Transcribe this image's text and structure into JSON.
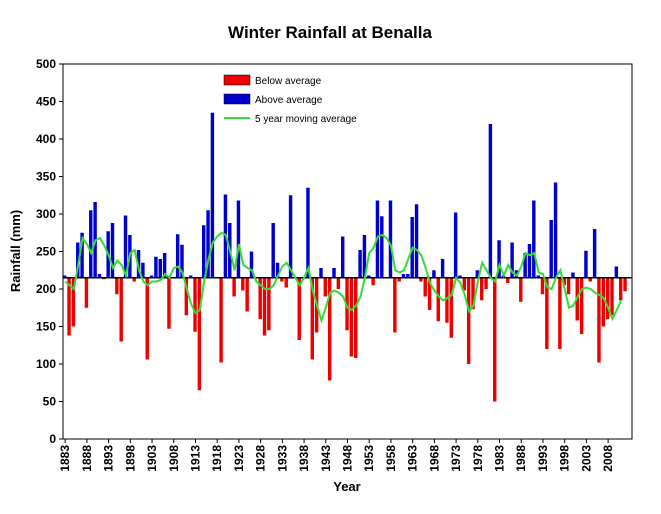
{
  "chart_data": {
    "type": "bar",
    "title": "Winter Rainfall at Benalla",
    "xlabel": "Year",
    "ylabel": "Rainfall (mm)",
    "baseline": 215,
    "ylim": [
      0,
      500
    ],
    "yticks": [
      0,
      50,
      100,
      150,
      200,
      250,
      300,
      350,
      400,
      450,
      500
    ],
    "xticks": [
      1883,
      1888,
      1893,
      1898,
      1903,
      1908,
      1913,
      1918,
      1923,
      1928,
      1933,
      1938,
      1943,
      1948,
      1953,
      1958,
      1963,
      1968,
      1973,
      1978,
      1983,
      1988,
      1993,
      1998,
      2003,
      2008
    ],
    "start_year": 1883,
    "end_year": 2012,
    "colors": {
      "below": "#ee0000",
      "above": "#0000cc",
      "moving_avg": "#33dd33"
    },
    "legend": [
      "Below average",
      "Above average",
      "5 year moving average"
    ],
    "series": [
      {
        "name": "Rainfall",
        "years": [
          1883,
          1884,
          1885,
          1886,
          1887,
          1888,
          1889,
          1890,
          1891,
          1892,
          1893,
          1894,
          1895,
          1896,
          1897,
          1898,
          1899,
          1900,
          1901,
          1902,
          1903,
          1904,
          1905,
          1906,
          1907,
          1908,
          1909,
          1910,
          1911,
          1912,
          1913,
          1914,
          1915,
          1916,
          1917,
          1918,
          1919,
          1920,
          1921,
          1922,
          1923,
          1924,
          1925,
          1926,
          1927,
          1928,
          1929,
          1930,
          1931,
          1932,
          1933,
          1934,
          1935,
          1936,
          1937,
          1938,
          1939,
          1940,
          1941,
          1942,
          1943,
          1944,
          1945,
          1946,
          1947,
          1948,
          1949,
          1950,
          1951,
          1952,
          1953,
          1954,
          1955,
          1956,
          1957,
          1958,
          1959,
          1960,
          1961,
          1962,
          1963,
          1964,
          1965,
          1966,
          1967,
          1968,
          1969,
          1970,
          1971,
          1972,
          1973,
          1974,
          1975,
          1976,
          1977,
          1978,
          1979,
          1980,
          1981,
          1982,
          1983,
          1984,
          1985,
          1986,
          1987,
          1988,
          1989,
          1990,
          1991,
          1992,
          1993,
          1994,
          1995,
          1996,
          1997,
          1998,
          1999,
          2000,
          2001,
          2002,
          2003,
          2004,
          2005,
          2006,
          2007,
          2008,
          2009,
          2010,
          2011,
          2012
        ],
        "values": [
          218,
          138,
          150,
          262,
          275,
          175,
          305,
          316,
          220,
          213,
          277,
          288,
          193,
          130,
          298,
          272,
          210,
          252,
          235,
          106,
          218,
          243,
          240,
          248,
          147,
          214,
          273,
          259,
          165,
          218,
          143,
          65,
          285,
          305,
          435,
          214,
          102,
          326,
          288,
          190,
          318,
          198,
          170,
          250,
          214,
          160,
          138,
          145,
          288,
          235,
          210,
          202,
          325,
          215,
          132,
          215,
          335,
          106,
          142,
          228,
          190,
          78,
          228,
          200,
          270,
          145,
          110,
          108,
          252,
          272,
          218,
          205,
          318,
          297,
          215,
          318,
          142,
          210,
          220,
          220,
          296,
          313,
          210,
          190,
          172,
          225,
          157,
          240,
          155,
          135,
          302,
          218,
          198,
          100,
          173,
          225,
          185,
          200,
          420,
          50,
          265,
          218,
          208,
          262,
          225,
          183,
          248,
          260,
          318,
          218,
          193,
          120,
          292,
          342,
          120,
          205,
          193,
          222,
          158,
          140,
          251,
          210,
          280,
          102,
          150,
          160,
          165,
          230,
          185,
          197
        ]
      },
      {
        "name": "5 year moving average",
        "years": [
          1883,
          1884,
          1885,
          1886,
          1887,
          1888,
          1889,
          1890,
          1891,
          1892,
          1893,
          1894,
          1895,
          1896,
          1897,
          1898,
          1899,
          1900,
          1901,
          1902,
          1903,
          1904,
          1905,
          1906,
          1907,
          1908,
          1909,
          1910,
          1911,
          1912,
          1913,
          1914,
          1915,
          1916,
          1917,
          1918,
          1919,
          1920,
          1921,
          1922,
          1923,
          1924,
          1925,
          1926,
          1927,
          1928,
          1929,
          1930,
          1931,
          1932,
          1933,
          1934,
          1935,
          1936,
          1937,
          1938,
          1939,
          1940,
          1941,
          1942,
          1943,
          1944,
          1945,
          1946,
          1947,
          1948,
          1949,
          1950,
          1951,
          1952,
          1953,
          1954,
          1955,
          1956,
          1957,
          1958,
          1959,
          1960,
          1961,
          1962,
          1963,
          1964,
          1965,
          1966,
          1967,
          1968,
          1969,
          1970,
          1971,
          1972,
          1973,
          1974,
          1975,
          1976,
          1977,
          1978,
          1979,
          1980,
          1981,
          1982,
          1983,
          1984,
          1985,
          1986,
          1987,
          1988,
          1989,
          1990,
          1991,
          1992,
          1993,
          1994,
          1995,
          1996,
          1997,
          1998,
          1999,
          2000,
          2001,
          2002,
          2003,
          2004,
          2005,
          2006,
          2007,
          2008,
          2009,
          2010,
          2011
        ],
        "values": [
          210,
          205,
          200,
          232,
          268,
          260,
          248,
          265,
          268,
          258,
          245,
          228,
          238,
          232,
          218,
          248,
          252,
          225,
          210,
          205,
          210,
          210,
          212,
          220,
          215,
          228,
          230,
          222,
          200,
          180,
          168,
          172,
          210,
          240,
          262,
          270,
          275,
          272,
          250,
          225,
          260,
          232,
          228,
          225,
          210,
          205,
          200,
          200,
          205,
          218,
          230,
          235,
          225,
          215,
          205,
          215,
          228,
          198,
          178,
          158,
          175,
          195,
          198,
          195,
          190,
          175,
          172,
          178,
          190,
          215,
          248,
          255,
          270,
          272,
          268,
          258,
          225,
          222,
          225,
          240,
          255,
          252,
          245,
          228,
          208,
          198,
          190,
          185,
          188,
          192,
          215,
          208,
          192,
          170,
          178,
          210,
          235,
          225,
          215,
          210,
          232,
          218,
          232,
          222,
          218,
          230,
          248,
          245,
          248,
          222,
          220,
          202,
          200,
          215,
          225,
          200,
          175,
          178,
          190,
          200,
          202,
          200,
          195,
          192,
          188,
          175,
          160,
          172,
          185
        ]
      }
    ]
  }
}
